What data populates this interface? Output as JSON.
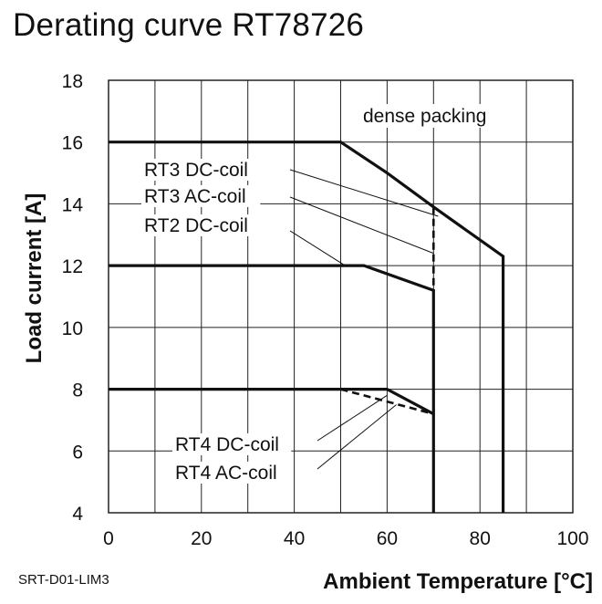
{
  "title": "Derating curve RT78726",
  "footer_id": "SRT-D01-LIM3",
  "chart_data": {
    "type": "line",
    "title": "Derating curve RT78726",
    "xlabel": "Ambient Temperature [°C]",
    "ylabel": "Load current [A]",
    "xlim": [
      0,
      100
    ],
    "ylim": [
      4,
      18
    ],
    "xticks": [
      0,
      20,
      40,
      60,
      80,
      100
    ],
    "yticks": [
      4,
      6,
      8,
      10,
      12,
      14,
      16,
      18
    ],
    "grid": true,
    "series": [
      {
        "name": "RT3 DC-coil",
        "style": "solid",
        "points": [
          [
            0,
            16
          ],
          [
            50,
            16
          ],
          [
            60,
            15
          ],
          [
            70,
            13.9
          ],
          [
            85,
            12.3
          ],
          [
            85,
            4
          ]
        ]
      },
      {
        "name": "RT3 AC-coil",
        "style": "dashed",
        "points": [
          [
            70,
            13.9
          ],
          [
            70,
            11.2
          ]
        ]
      },
      {
        "name": "RT2 DC-coil",
        "style": "solid",
        "points": [
          [
            0,
            12
          ],
          [
            55,
            12
          ],
          [
            70,
            11.2
          ],
          [
            70,
            4
          ]
        ]
      },
      {
        "name": "RT4 DC-coil",
        "style": "solid",
        "points": [
          [
            0,
            8
          ],
          [
            60,
            8
          ],
          [
            70,
            7.2
          ]
        ]
      },
      {
        "name": "RT4 AC-coil",
        "style": "dashed",
        "points": [
          [
            50,
            8
          ],
          [
            70,
            7.2
          ]
        ]
      }
    ],
    "annotations": [
      {
        "text": "dense packing"
      },
      {
        "text": "RT3 DC-coil",
        "target": [
          71,
          13.6
        ]
      },
      {
        "text": "RT3 AC-coil",
        "target": [
          70,
          12.4
        ]
      },
      {
        "text": "RT2 DC-coil",
        "target": [
          51,
          12.0
        ]
      },
      {
        "text": "RT4 DC-coil",
        "target": [
          60,
          7.8
        ]
      },
      {
        "text": "RT4 AC-coil",
        "target": [
          62,
          7.5
        ]
      }
    ]
  }
}
